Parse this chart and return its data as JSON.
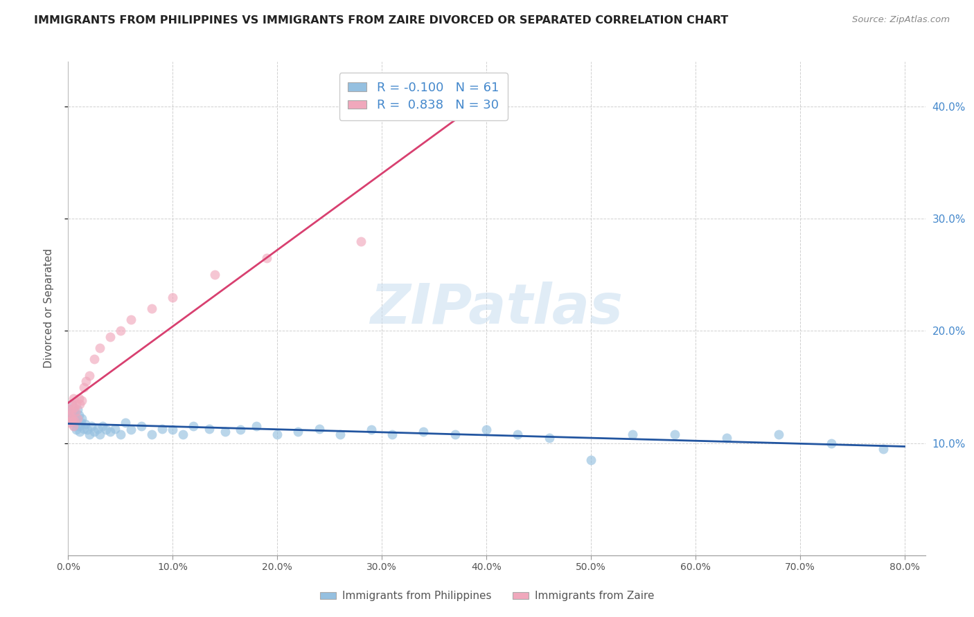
{
  "title": "IMMIGRANTS FROM PHILIPPINES VS IMMIGRANTS FROM ZAIRE DIVORCED OR SEPARATED CORRELATION CHART",
  "source": "Source: ZipAtlas.com",
  "ylabel_label": "Divorced or Separated",
  "legend_labels": [
    "Immigrants from Philippines",
    "Immigrants from Zaire"
  ],
  "r_philippines": -0.1,
  "n_philippines": 61,
  "r_zaire": 0.838,
  "n_zaire": 30,
  "color_philippines": "#95c0e0",
  "color_zaire": "#f0a8bc",
  "line_color_philippines": "#2255a0",
  "line_color_zaire": "#d84070",
  "background_color": "#ffffff",
  "grid_color": "#d0d0d0",
  "watermark_text": "ZIPatlas",
  "watermark_color": "#c8ddf0",
  "title_color": "#222222",
  "source_color": "#888888",
  "axis_label_color": "#555555",
  "tick_color_right": "#4488cc",
  "tick_color_bottom": "#555555",
  "xlim": [
    0.0,
    0.82
  ],
  "ylim": [
    0.0,
    0.44
  ],
  "x_ticks": [
    0.0,
    0.1,
    0.2,
    0.3,
    0.4,
    0.5,
    0.6,
    0.7,
    0.8
  ],
  "y_ticks_right": [
    0.1,
    0.2,
    0.3,
    0.4
  ],
  "scatter_size": 100,
  "scatter_alpha": 0.65,
  "phil_x": [
    0.002,
    0.003,
    0.003,
    0.004,
    0.004,
    0.005,
    0.005,
    0.006,
    0.006,
    0.007,
    0.007,
    0.008,
    0.009,
    0.01,
    0.01,
    0.011,
    0.012,
    0.013,
    0.015,
    0.016,
    0.018,
    0.02,
    0.022,
    0.025,
    0.028,
    0.03,
    0.033,
    0.036,
    0.04,
    0.045,
    0.05,
    0.055,
    0.06,
    0.07,
    0.08,
    0.09,
    0.1,
    0.11,
    0.12,
    0.135,
    0.15,
    0.165,
    0.18,
    0.2,
    0.22,
    0.24,
    0.26,
    0.29,
    0.31,
    0.34,
    0.37,
    0.4,
    0.43,
    0.46,
    0.5,
    0.54,
    0.58,
    0.63,
    0.68,
    0.73,
    0.78
  ],
  "phil_y": [
    0.13,
    0.127,
    0.122,
    0.135,
    0.12,
    0.118,
    0.125,
    0.128,
    0.115,
    0.123,
    0.118,
    0.112,
    0.13,
    0.125,
    0.115,
    0.11,
    0.118,
    0.122,
    0.113,
    0.117,
    0.112,
    0.108,
    0.115,
    0.11,
    0.113,
    0.108,
    0.115,
    0.112,
    0.11,
    0.113,
    0.108,
    0.118,
    0.112,
    0.115,
    0.108,
    0.113,
    0.112,
    0.108,
    0.115,
    0.113,
    0.11,
    0.112,
    0.115,
    0.108,
    0.11,
    0.113,
    0.108,
    0.112,
    0.108,
    0.11,
    0.108,
    0.112,
    0.108,
    0.105,
    0.085,
    0.108,
    0.108,
    0.105,
    0.108,
    0.1,
    0.095
  ],
  "zaire_x": [
    0.001,
    0.002,
    0.002,
    0.003,
    0.003,
    0.004,
    0.004,
    0.005,
    0.005,
    0.006,
    0.006,
    0.007,
    0.008,
    0.009,
    0.01,
    0.011,
    0.013,
    0.015,
    0.017,
    0.02,
    0.025,
    0.03,
    0.04,
    0.05,
    0.06,
    0.08,
    0.1,
    0.14,
    0.19,
    0.28
  ],
  "zaire_y": [
    0.125,
    0.13,
    0.118,
    0.128,
    0.12,
    0.135,
    0.122,
    0.14,
    0.115,
    0.132,
    0.12,
    0.128,
    0.135,
    0.122,
    0.14,
    0.135,
    0.138,
    0.15,
    0.155,
    0.16,
    0.175,
    0.185,
    0.195,
    0.2,
    0.21,
    0.22,
    0.23,
    0.25,
    0.265,
    0.28
  ]
}
